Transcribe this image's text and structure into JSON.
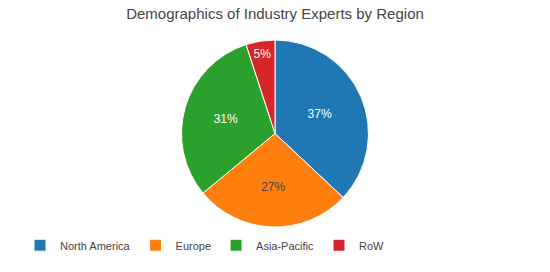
{
  "chart_data": {
    "type": "pie",
    "title": "Demographics of Industry Experts by Region",
    "categories": [
      "North America",
      "Europe",
      "Asia-Pacific",
      "RoW"
    ],
    "values": [
      37,
      27,
      31,
      5
    ],
    "value_labels": [
      "37%",
      "27%",
      "31%",
      "5%"
    ],
    "data_labels": true,
    "legend": "lower left"
  }
}
